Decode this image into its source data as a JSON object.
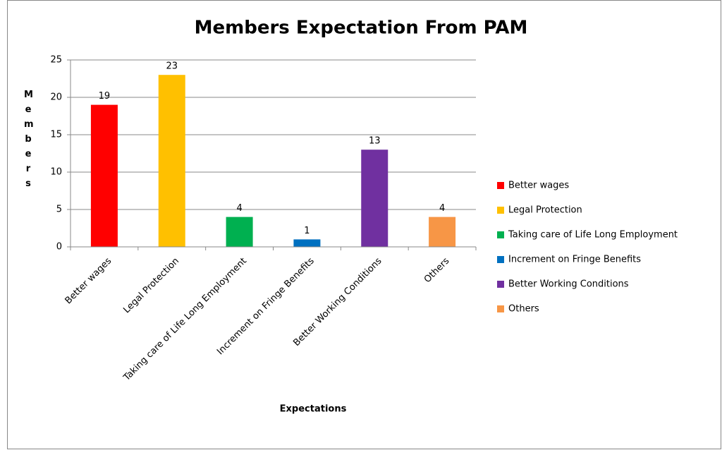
{
  "chart_data": {
    "type": "bar",
    "title": "Members Expectation From PAM",
    "xlabel": "Expectations",
    "ylabel": "Members",
    "categories": [
      "Better wages",
      "Legal Protection",
      "Taking care of Life Long Employment",
      "Increment on Fringe Benefits",
      "Better Working Conditions",
      "Others"
    ],
    "values": [
      19,
      23,
      4,
      1,
      13,
      4
    ],
    "colors": [
      "#ff0000",
      "#ffc000",
      "#00b050",
      "#0070c0",
      "#7030a0",
      "#f79646"
    ],
    "ylim": [
      0,
      25
    ],
    "yticks": [
      0,
      5,
      10,
      15,
      20,
      25
    ],
    "grid": true,
    "legend": "right"
  }
}
